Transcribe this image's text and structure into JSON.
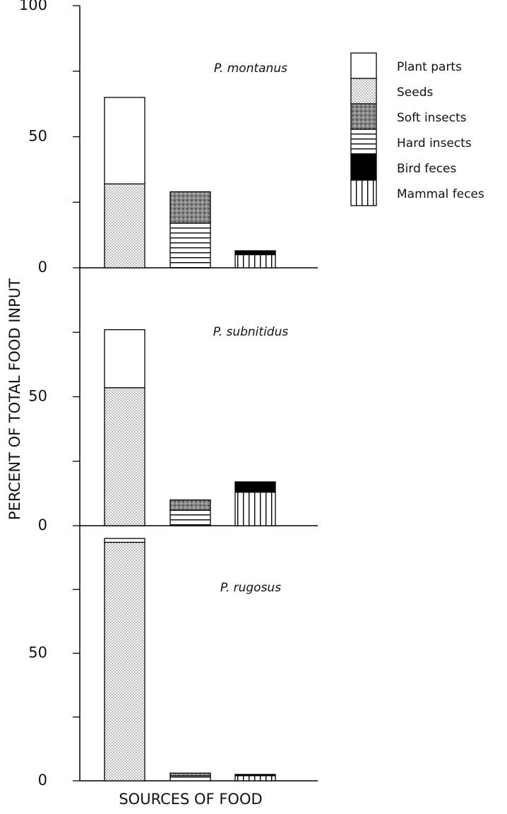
{
  "chart_data": {
    "type": "bar",
    "stacked": true,
    "ylabel": "PERCENT OF TOTAL FOOD INPUT",
    "xlabel": "SOURCES OF FOOD",
    "series": [
      {
        "name": "Plant parts",
        "pattern": "white"
      },
      {
        "name": "Seeds",
        "pattern": "dots"
      },
      {
        "name": "Soft insects",
        "pattern": "mottled"
      },
      {
        "name": "Hard insects",
        "pattern": "hlines"
      },
      {
        "name": "Bird feces",
        "pattern": "solid"
      },
      {
        "name": "Mammal feces",
        "pattern": "vlines"
      }
    ],
    "panels": [
      {
        "title": "P. montanus",
        "categories": [
          null,
          null,
          null
        ],
        "ylim": [
          0,
          100
        ],
        "yticks": [
          0,
          50,
          100
        ],
        "minor_yticks": [
          25,
          75
        ],
        "series_values": [
          [
            33,
            null,
            null
          ],
          [
            32,
            null,
            null
          ],
          [
            null,
            12,
            null
          ],
          [
            null,
            17,
            null
          ],
          [
            null,
            null,
            1.5
          ],
          [
            null,
            null,
            5
          ]
        ]
      },
      {
        "title": "P. subnitidus",
        "categories": [
          null,
          null,
          null
        ],
        "ylim": [
          0,
          100
        ],
        "yticks": [
          0,
          50
        ],
        "minor_yticks": [
          25,
          75
        ],
        "series_values": [
          [
            22.5,
            null,
            null
          ],
          [
            53.5,
            null,
            null
          ],
          [
            null,
            4,
            null
          ],
          [
            null,
            6,
            null
          ],
          [
            null,
            null,
            4
          ],
          [
            null,
            null,
            13
          ]
        ]
      },
      {
        "title": "P. rugosus",
        "categories": [
          null,
          null,
          null
        ],
        "ylim": [
          0,
          100
        ],
        "yticks": [
          0,
          50
        ],
        "minor_yticks": [
          25,
          75
        ],
        "series_values": [
          [
            1.5,
            null,
            null
          ],
          [
            93.5,
            null,
            null
          ],
          [
            null,
            1,
            null
          ],
          [
            null,
            2,
            null
          ],
          [
            null,
            null,
            0.5
          ],
          [
            null,
            null,
            2
          ]
        ]
      }
    ]
  }
}
